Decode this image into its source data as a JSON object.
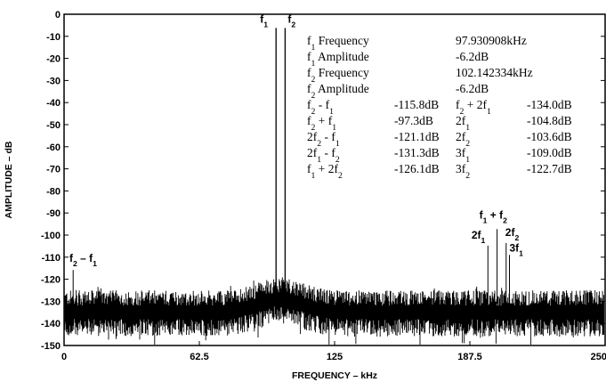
{
  "chart_data": {
    "type": "line",
    "title": "",
    "xlabel": "FREQUENCY – kHz",
    "ylabel": "AMPLITUDE – dB",
    "xlim": [
      0,
      250
    ],
    "ylim": [
      -150,
      0
    ],
    "x_ticks": [
      "0",
      "62.5",
      "125",
      "187.5",
      "250"
    ],
    "y_ticks": [
      "0",
      "-10",
      "-20",
      "-30",
      "-40",
      "-50",
      "-60",
      "-70",
      "-80",
      "-90",
      "-100",
      "-110",
      "-120",
      "-130",
      "-140",
      "-150"
    ],
    "grid": false,
    "noise_floor_db": -135,
    "tones": [
      {
        "label_base": "f",
        "label_sub": "1",
        "x": 97.93,
        "y": -6.2
      },
      {
        "label_base": "f",
        "label_sub": "2",
        "x": 102.14,
        "y": -6.2
      },
      {
        "label_base": "f",
        "label_sub": "2",
        "label_suffix": " – f",
        "label_sub2": "1",
        "x": 4.21,
        "y": -115.8
      },
      {
        "label_base": "2f",
        "label_sub": "1",
        "x": 195.86,
        "y": -104.8
      },
      {
        "label_base": "f",
        "label_sub": "1",
        "label_suffix": " + f",
        "label_sub2": "2",
        "x": 200.07,
        "y": -97.3
      },
      {
        "label_base": "2f",
        "label_sub": "2",
        "x": 204.28,
        "y": -103.6
      },
      {
        "label_base": "3f",
        "label_sub": "1",
        "x": 205.8,
        "y": -109.0
      }
    ],
    "annotation_table": {
      "rows": [
        [
          {
            "b": "f",
            "s": "1",
            "t": " Frequency"
          },
          {
            "t": "97.930908kHz"
          }
        ],
        [
          {
            "b": "f",
            "s": "1",
            "t": " Amplitude"
          },
          {
            "t": "-6.2dB"
          }
        ],
        [
          {
            "b": "f",
            "s": "2",
            "t": " Frequency"
          },
          {
            "t": "102.142334kHz"
          }
        ],
        [
          {
            "b": "f",
            "s": "2",
            "t": " Amplitude"
          },
          {
            "t": "-6.2dB"
          }
        ],
        [
          {
            "b": "f",
            "s": "2",
            "t": " - f",
            "s2": "1"
          },
          {
            "t": "-115.8dB"
          },
          {
            "b": "f",
            "s": "2",
            "t": " + 2f",
            "s2": "1"
          },
          {
            "t": "-134.0dB"
          }
        ],
        [
          {
            "b": "f",
            "s": "2",
            "t": " + f",
            "s2": "1"
          },
          {
            "t": "-97.3dB"
          },
          {
            "b": "2f",
            "s": "1"
          },
          {
            "t": "-104.8dB"
          }
        ],
        [
          {
            "b": "2f",
            "s": "2",
            "t": " - f",
            "s2": "1"
          },
          {
            "t": "-121.1dB"
          },
          {
            "b": "2f",
            "s": "2"
          },
          {
            "t": "-103.6dB"
          }
        ],
        [
          {
            "b": "2f",
            "s": "1",
            "t": " - f",
            "s2": "2"
          },
          {
            "t": "-131.3dB"
          },
          {
            "b": "3f",
            "s": "1"
          },
          {
            "t": "-109.0dB"
          }
        ],
        [
          {
            "b": "f",
            "s": "1",
            "t": " + 2f",
            "s2": "2"
          },
          {
            "t": "-126.1dB"
          },
          {
            "b": "3f",
            "s": "2"
          },
          {
            "t": "-122.7dB"
          }
        ]
      ]
    }
  }
}
